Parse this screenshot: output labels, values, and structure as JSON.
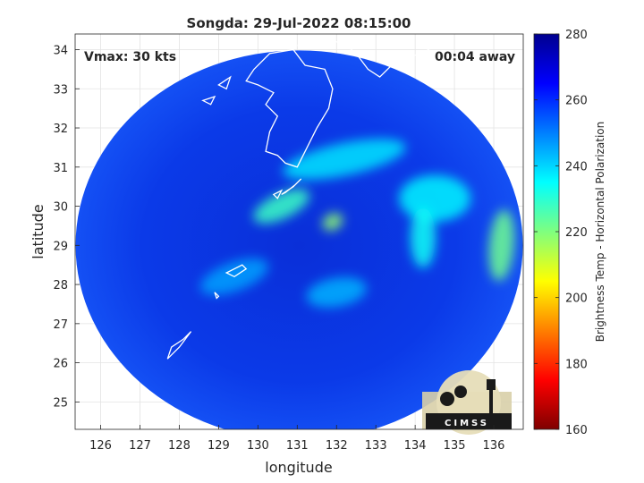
{
  "chart_data": {
    "type": "heatmap",
    "title": "Songda: 29-Jul-2022 08:15:00",
    "xlabel": "longitude",
    "ylabel": "latitude",
    "xlim": [
      125.35,
      136.75
    ],
    "ylim": [
      24.3,
      34.4
    ],
    "xticks": [
      126,
      127,
      128,
      129,
      130,
      131,
      132,
      133,
      134,
      135,
      136
    ],
    "yticks": [
      25,
      26,
      27,
      28,
      29,
      30,
      31,
      32,
      33,
      34
    ],
    "grid": true,
    "annotations": {
      "vmax": "Vmax: 30 kts",
      "away": "00:04 away"
    },
    "colorbar": {
      "label": "Brightness Temp - Horizontal Polarization",
      "range": [
        160,
        280
      ],
      "ticks": [
        160,
        180,
        200,
        220,
        240,
        260,
        280
      ],
      "colormap": [
        "#7f0000",
        "#ff0000",
        "#ff7f00",
        "#ffff00",
        "#7fff7f",
        "#00ffff",
        "#007fff",
        "#0000ff",
        "#00008f"
      ]
    },
    "swath": {
      "center_lon": 131.05,
      "center_lat": 29.0,
      "background_value": 262
    },
    "features": [
      {
        "name": "rainband-north",
        "lon": 132.2,
        "lat": 31.2,
        "value": 238
      },
      {
        "name": "rainband-west",
        "lon": 130.6,
        "lat": 30.0,
        "value": 228
      },
      {
        "name": "convective-core",
        "lon": 131.9,
        "lat": 29.6,
        "value": 218
      },
      {
        "name": "east-cluster",
        "lon": 134.5,
        "lat": 30.2,
        "value": 236
      },
      {
        "name": "east-band",
        "lon": 134.2,
        "lat": 29.2,
        "value": 234
      },
      {
        "name": "far-east-edge",
        "lon": 136.2,
        "lat": 29.0,
        "value": 222
      },
      {
        "name": "southwest-patch",
        "lon": 129.4,
        "lat": 28.2,
        "value": 246
      },
      {
        "name": "south-patch",
        "lon": 132.0,
        "lat": 27.8,
        "value": 244
      }
    ],
    "logo": {
      "text": "CIMSS"
    }
  }
}
